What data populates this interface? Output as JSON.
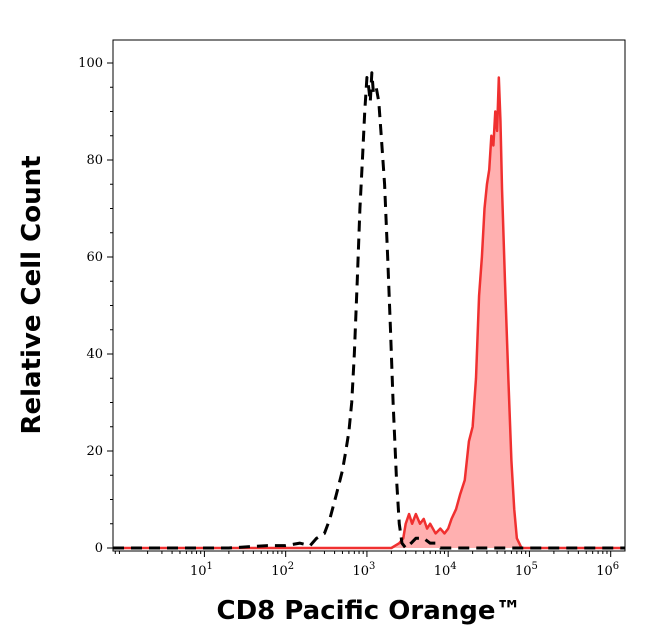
{
  "chart_data": {
    "type": "area",
    "xlabel": "CD8 Pacific Orange™",
    "ylabel": "Relative Cell Count",
    "x_scale": "log",
    "xlim": [
      0.75,
      1500000
    ],
    "ylim": [
      0,
      100
    ],
    "grid": false,
    "x_ticks": [
      {
        "base": "10",
        "exp": "1",
        "value": 10
      },
      {
        "base": "10",
        "exp": "2",
        "value": 100
      },
      {
        "base": "10",
        "exp": "3",
        "value": 1000
      },
      {
        "base": "10",
        "exp": "4",
        "value": 10000
      },
      {
        "base": "10",
        "exp": "5",
        "value": 100000
      },
      {
        "base": "10",
        "exp": "6",
        "value": 1000000
      }
    ],
    "y_ticks": [
      "0",
      "20",
      "40",
      "60",
      "80",
      "100"
    ],
    "series": [
      {
        "style": "dashed",
        "color": "#000000",
        "fill": "none",
        "points": [
          [
            0.75,
            0
          ],
          [
            1.5,
            0
          ],
          [
            5,
            0
          ],
          [
            20,
            0
          ],
          [
            60,
            0.5
          ],
          [
            100,
            0.5
          ],
          [
            150,
            1
          ],
          [
            200,
            0.5
          ],
          [
            240,
            2
          ],
          [
            300,
            3
          ],
          [
            350,
            6
          ],
          [
            420,
            11
          ],
          [
            500,
            16
          ],
          [
            550,
            20
          ],
          [
            600,
            24
          ],
          [
            650,
            30
          ],
          [
            700,
            40
          ],
          [
            760,
            55
          ],
          [
            820,
            70
          ],
          [
            880,
            80
          ],
          [
            940,
            90
          ],
          [
            1000,
            97
          ],
          [
            1050,
            95
          ],
          [
            1100,
            92
          ],
          [
            1150,
            98
          ],
          [
            1200,
            94
          ],
          [
            1300,
            95
          ],
          [
            1400,
            92
          ],
          [
            1500,
            85
          ],
          [
            1650,
            75
          ],
          [
            1800,
            60
          ],
          [
            1950,
            45
          ],
          [
            2100,
            30
          ],
          [
            2300,
            15
          ],
          [
            2500,
            5
          ],
          [
            2700,
            1
          ],
          [
            3000,
            0
          ],
          [
            3500,
            1
          ],
          [
            4000,
            2
          ],
          [
            5000,
            2
          ],
          [
            6000,
            1
          ],
          [
            7000,
            1
          ],
          [
            8000,
            0
          ],
          [
            10000,
            0
          ],
          [
            15000,
            0
          ],
          [
            100000,
            0
          ],
          [
            1500000,
            0
          ]
        ]
      },
      {
        "style": "solid",
        "color": "#f03030",
        "fill": "#ffb0b0",
        "points": [
          [
            0.75,
            0
          ],
          [
            100,
            0
          ],
          [
            1000,
            0
          ],
          [
            2000,
            0
          ],
          [
            2500,
            1
          ],
          [
            2800,
            2
          ],
          [
            3000,
            5
          ],
          [
            3300,
            7
          ],
          [
            3600,
            5
          ],
          [
            4000,
            7
          ],
          [
            4500,
            5
          ],
          [
            5000,
            6
          ],
          [
            5500,
            4
          ],
          [
            6000,
            5
          ],
          [
            7000,
            3
          ],
          [
            8000,
            4
          ],
          [
            9000,
            3
          ],
          [
            10000,
            4
          ],
          [
            11000,
            6
          ],
          [
            12500,
            8
          ],
          [
            14000,
            11
          ],
          [
            16000,
            14
          ],
          [
            18000,
            22
          ],
          [
            20000,
            25
          ],
          [
            22000,
            35
          ],
          [
            24000,
            52
          ],
          [
            26000,
            60
          ],
          [
            28000,
            70
          ],
          [
            30000,
            75
          ],
          [
            32000,
            78
          ],
          [
            34000,
            85
          ],
          [
            36000,
            83
          ],
          [
            38000,
            90
          ],
          [
            40000,
            86
          ],
          [
            42000,
            97
          ],
          [
            44000,
            88
          ],
          [
            46000,
            74
          ],
          [
            50000,
            55
          ],
          [
            55000,
            35
          ],
          [
            60000,
            18
          ],
          [
            65000,
            8
          ],
          [
            70000,
            2
          ],
          [
            80000,
            0
          ],
          [
            100000,
            0
          ],
          [
            1500000,
            0
          ]
        ]
      }
    ]
  }
}
